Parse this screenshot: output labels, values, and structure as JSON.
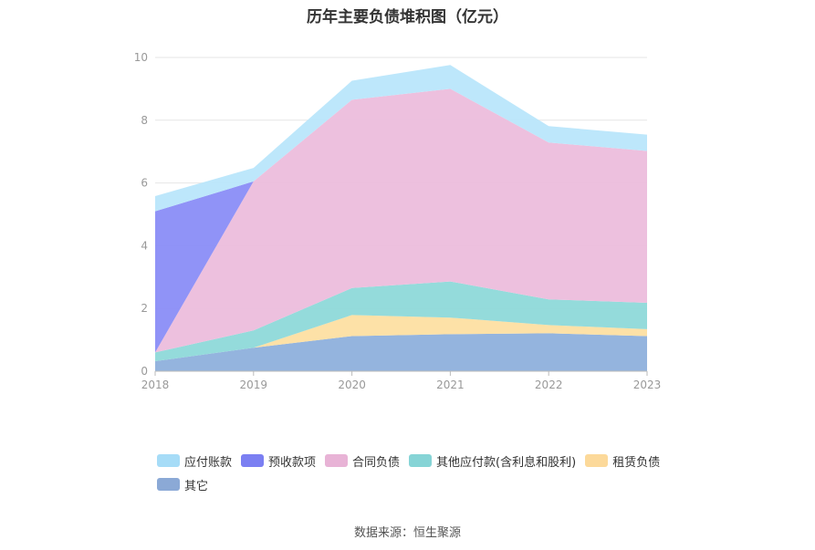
{
  "chart_data": {
    "type": "area",
    "stacked": true,
    "title": "历年主要负债堆积图（亿元）",
    "xlabel": "",
    "ylabel": "",
    "categories": [
      "2018",
      "2019",
      "2020",
      "2021",
      "2022",
      "2023"
    ],
    "ylim": [
      0,
      10
    ],
    "yticks": [
      0,
      2,
      4,
      6,
      8,
      10
    ],
    "grid": true,
    "legend_position": "bottom-left",
    "series": [
      {
        "name": "其它",
        "color": "#8eb0dc",
        "values": [
          0.32,
          0.75,
          1.12,
          1.18,
          1.21,
          1.12
        ]
      },
      {
        "name": "租赁负债",
        "color": "#fddfa2",
        "values": [
          0.0,
          0.0,
          0.67,
          0.53,
          0.26,
          0.22
        ]
      },
      {
        "name": "其他应付款(含利息和股利)",
        "color": "#8ed9d9",
        "values": [
          0.28,
          0.55,
          0.86,
          1.15,
          0.82,
          0.84
        ]
      },
      {
        "name": "合同负债",
        "color": "#ecbddc",
        "values": [
          0.0,
          4.75,
          6.0,
          6.14,
          5.0,
          4.84
        ]
      },
      {
        "name": "预收款项",
        "color": "#8a8df7",
        "values": [
          4.5,
          0.0,
          0.0,
          0.0,
          0.0,
          0.0
        ]
      },
      {
        "name": "应付账款",
        "color": "#b9e6fb",
        "values": [
          0.48,
          0.43,
          0.61,
          0.76,
          0.52,
          0.52
        ]
      }
    ],
    "legend_order": [
      "应付账款",
      "预收款项",
      "合同负债",
      "其他应付款(含利息和股利)",
      "租赁负债",
      "其它"
    ],
    "legend_colors": {
      "应付账款": "#a6dcf7",
      "预收款项": "#7b7ff2",
      "合同负债": "#e8b3d6",
      "其他应付款(含利息和股利)": "#86d4d6",
      "租赁负债": "#fcd99a",
      "其它": "#8ba9d6"
    }
  },
  "source_text": "数据来源：恒生聚源"
}
